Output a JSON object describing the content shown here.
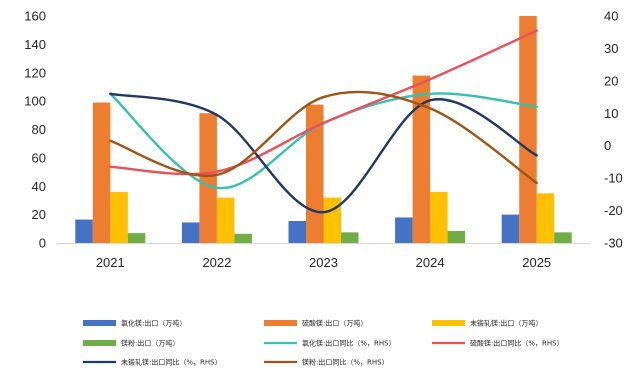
{
  "chart_data": {
    "type": "bar",
    "categories": [
      "2021",
      "2022",
      "2023",
      "2024",
      "2025"
    ],
    "y_left": {
      "lim": [
        0,
        160
      ],
      "ticks": [
        0,
        20,
        40,
        60,
        80,
        100,
        120,
        140,
        160
      ]
    },
    "y_right": {
      "lim": [
        -30,
        40
      ],
      "ticks": [
        -30,
        -20,
        -10,
        0,
        10,
        20,
        30,
        40
      ]
    },
    "grid": false,
    "legend_position": "bottom",
    "bar_series": [
      {
        "name": "氯化镁:出口（万吨）",
        "color": "#4472C4",
        "values": [
          16.5,
          14.5,
          15.5,
          18,
          20
        ]
      },
      {
        "name": "硫酸镁:出口（万吨）",
        "color": "#ED7D31",
        "values": [
          99,
          91.5,
          97.5,
          118,
          160
        ]
      },
      {
        "name": "未锻轧镁:出口（万吨）",
        "color": "#FFC000",
        "values": [
          36,
          32,
          32,
          36,
          35
        ]
      },
      {
        "name": "镁粉:出口（万吨）",
        "color": "#70AD47",
        "values": [
          7,
          6.5,
          7.5,
          8.5,
          7.5
        ]
      }
    ],
    "line_series": [
      {
        "name": "氯化镁:出口同比（%，RHS）",
        "color": "#38BFB0",
        "values": [
          16,
          -13,
          7,
          16,
          12
        ]
      },
      {
        "name": "硫酸镁:出口同比（%，RHS）",
        "color": "#E8505B",
        "values": [
          -6.5,
          -8,
          7,
          20.5,
          35.5
        ]
      },
      {
        "name": "未锻轧镁:出口同比（%，RHS）",
        "color": "#203864",
        "values": [
          16,
          9.5,
          -20.5,
          14,
          -3
        ]
      },
      {
        "name": "镁粉:出口同比（%，RHS）",
        "color": "#9C5516",
        "values": [
          1.5,
          -9,
          15,
          11.5,
          -11.5
        ]
      }
    ]
  }
}
